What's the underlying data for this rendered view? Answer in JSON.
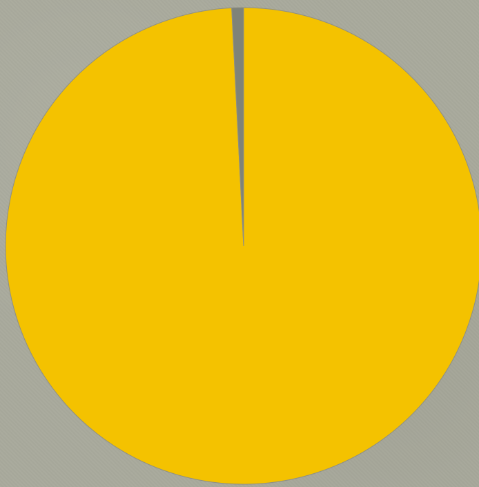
{
  "chart_data": {
    "type": "pie",
    "title": "",
    "background_color": "#a9aa9c",
    "start_angle_degrees": 0,
    "direction": "clockwise",
    "slices": [
      {
        "label": "",
        "value": 99.2,
        "color": "#f4c200"
      },
      {
        "label": "",
        "value": 0.8,
        "color": "#7f8378"
      }
    ]
  }
}
